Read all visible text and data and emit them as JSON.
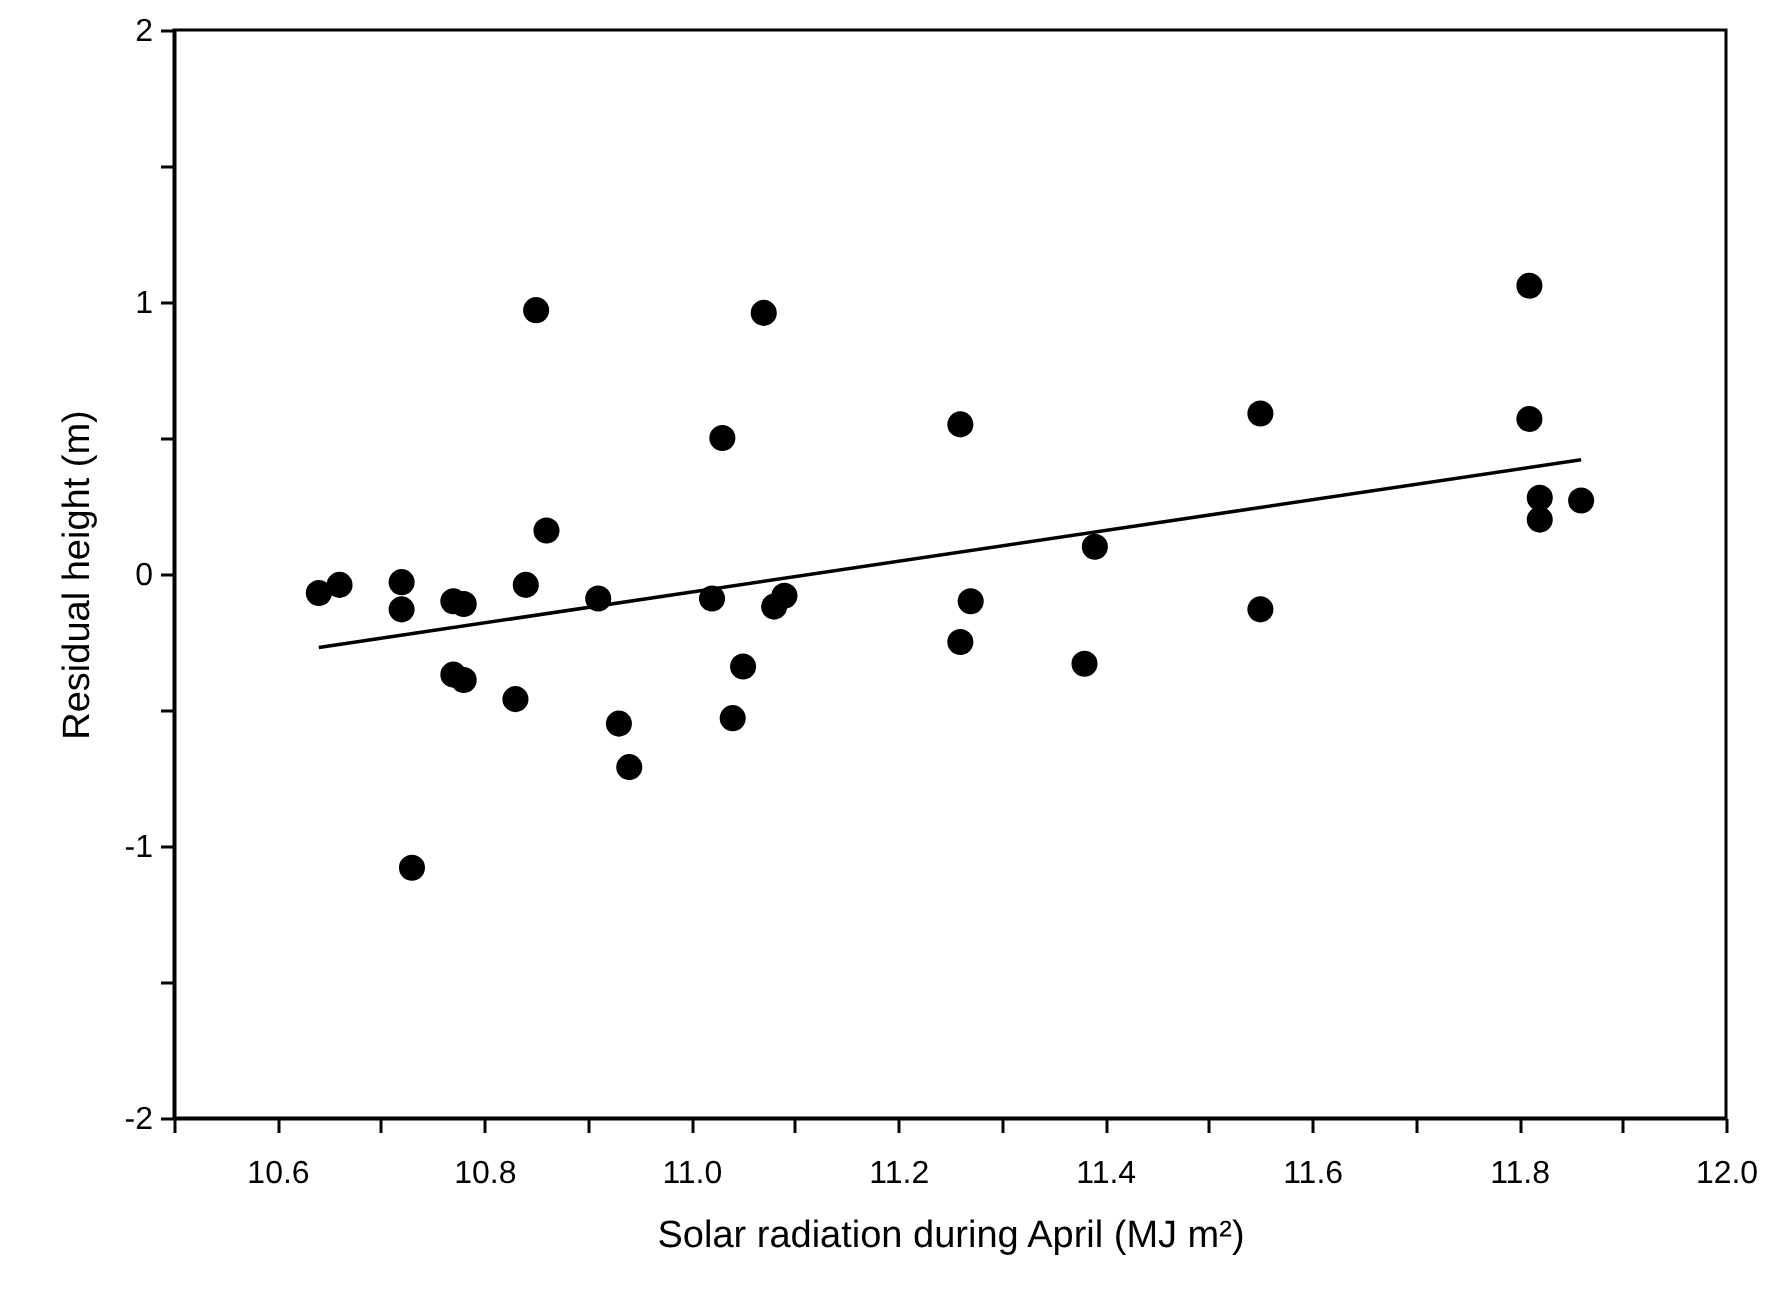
{
  "chart_data": {
    "type": "scatter",
    "xlabel": "Solar radiation during April (MJ m²)",
    "ylabel": "Residual height (m)",
    "xlim": [
      10.5,
      12.0
    ],
    "ylim": [
      -2,
      2
    ],
    "xticks": [
      {
        "value": 10.5,
        "label": null
      },
      {
        "value": 10.6,
        "label": "10.6"
      },
      {
        "value": 10.7,
        "label": null
      },
      {
        "value": 10.8,
        "label": "10.8"
      },
      {
        "value": 10.9,
        "label": null
      },
      {
        "value": 11.0,
        "label": "11.0"
      },
      {
        "value": 11.1,
        "label": null
      },
      {
        "value": 11.2,
        "label": "11.2"
      },
      {
        "value": 11.3,
        "label": null
      },
      {
        "value": 11.4,
        "label": "11.4"
      },
      {
        "value": 11.5,
        "label": null
      },
      {
        "value": 11.6,
        "label": "11.6"
      },
      {
        "value": 11.7,
        "label": null
      },
      {
        "value": 11.8,
        "label": "11.8"
      },
      {
        "value": 11.9,
        "label": null
      },
      {
        "value": 12.0,
        "label": "12.0"
      }
    ],
    "yticks": [
      -2,
      {
        "value": -1.5,
        "label": null
      },
      -1,
      {
        "value": -0.5,
        "label": null
      },
      0,
      {
        "value": 0.5,
        "label": null
      },
      1,
      {
        "value": 1.5,
        "label": null
      },
      2
    ],
    "grid": false,
    "marker": "circle",
    "series": [
      {
        "color": "#000000",
        "x": [
          10.64,
          10.66,
          10.72,
          10.72,
          10.77,
          10.78,
          10.77,
          10.78,
          10.84,
          10.86,
          10.85,
          10.83,
          10.91,
          10.73,
          10.93,
          10.94,
          11.02,
          11.03,
          11.05,
          11.04,
          11.07,
          11.08,
          11.09,
          11.26,
          11.27,
          11.26,
          11.39,
          11.38,
          11.55,
          11.55,
          11.81,
          11.81,
          11.82,
          11.82,
          11.86
        ],
        "values": [
          -0.07,
          -0.04,
          -0.03,
          -0.13,
          -0.1,
          -0.11,
          -0.37,
          -0.39,
          -0.04,
          0.16,
          0.97,
          -0.46,
          -0.09,
          -1.08,
          -0.55,
          -0.71,
          -0.09,
          0.5,
          -0.34,
          -0.53,
          0.96,
          -0.12,
          -0.08,
          0.55,
          -0.1,
          -0.25,
          0.1,
          -0.33,
          0.59,
          -0.13,
          1.06,
          0.57,
          0.28,
          0.2,
          0.27
        ]
      },
      {
        "type": "line",
        "color": "#000000",
        "x": [
          10.64,
          11.86
        ],
        "values": [
          -0.27,
          0.42
        ],
        "line_style": "solid",
        "marker": "none"
      }
    ]
  }
}
